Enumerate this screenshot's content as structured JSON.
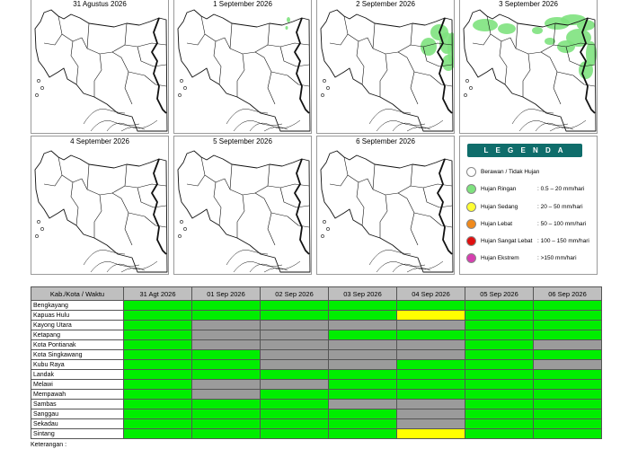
{
  "panels": [
    {
      "date": "31 Agustus 2026"
    },
    {
      "date": "1 September 2026"
    },
    {
      "date": "2 September 2026"
    },
    {
      "date": "3 September 2026"
    },
    {
      "date": "4 September 2026"
    },
    {
      "date": "5 September 2026"
    },
    {
      "date": "6 September 2026"
    }
  ],
  "legend": {
    "title": "L E G E N D A",
    "items": [
      {
        "label": "Berawan / Tidak Hujan",
        "range": "",
        "color": "#ffffff"
      },
      {
        "label": "Hujan Ringan",
        "range": ": 0.5 – 20 mm/hari",
        "color": "#7ee27e"
      },
      {
        "label": "Hujan Sedang",
        "range": ": 20 – 50 mm/hari",
        "color": "#ffff33"
      },
      {
        "label": "Hujan Lebat",
        "range": ": 50 – 100 mm/hari",
        "color": "#f08a1c"
      },
      {
        "label": "Hujan Sangat Lebat",
        "range": ": 100 – 150 mm/hari",
        "color": "#e01010"
      },
      {
        "label": "Hujan Ekstrem",
        "range": ": >150 mm/hari",
        "color": "#d63fb0"
      }
    ]
  },
  "table": {
    "header": [
      "Kab./Kota / Waktu",
      "31 Agt 2026",
      "01 Sep 2026",
      "02 Sep 2026",
      "03 Sep 2026",
      "04 Sep 2026",
      "05 Sep 2026",
      "06 Sep 2026"
    ],
    "colors": {
      "G": "#00ee00",
      "A": "#9b9b9b",
      "Y": "#ffff00"
    },
    "rows": [
      {
        "name": "Bengkayang",
        "cells": "GGGGGGG"
      },
      {
        "name": "Kapuas Hulu",
        "cells": "GGGGYGG"
      },
      {
        "name": "Kayong Utara",
        "cells": "GAAAAGG"
      },
      {
        "name": "Ketapang",
        "cells": "GAAGGGG"
      },
      {
        "name": "Kota Pontianak",
        "cells": "GAAAAGA"
      },
      {
        "name": "Kota Singkawang",
        "cells": "GGAAAGG"
      },
      {
        "name": "Kubu Raya",
        "cells": "GGAAGGA"
      },
      {
        "name": "Landak",
        "cells": "GGGGGGG"
      },
      {
        "name": "Melawi",
        "cells": "GAAGGGG"
      },
      {
        "name": "Mempawah",
        "cells": "GAGGGGG"
      },
      {
        "name": "Sambas",
        "cells": "GGGAAGG"
      },
      {
        "name": "Sanggau",
        "cells": "GGGGAGG"
      },
      {
        "name": "Sekadau",
        "cells": "GGGGAGG"
      },
      {
        "name": "Sintang",
        "cells": "GGGGYGG"
      }
    ]
  },
  "footnote": "Keterangan :"
}
